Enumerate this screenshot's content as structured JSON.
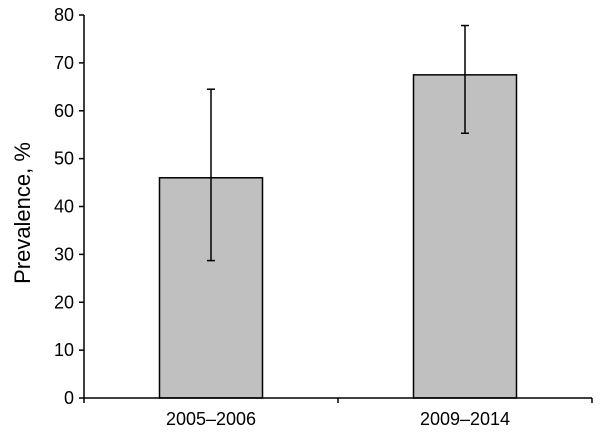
{
  "chart_data": {
    "type": "bar",
    "categories": [
      "2005–2006",
      "2009–2014"
    ],
    "values": [
      46,
      67.5
    ],
    "error_low": [
      28.7,
      55.3
    ],
    "error_high": [
      64.5,
      77.8
    ],
    "title": "",
    "xlabel": "",
    "ylabel": "Prevalence, %",
    "ylim": [
      0,
      80
    ],
    "yticks": [
      0,
      10,
      20,
      30,
      40,
      50,
      60,
      70,
      80
    ],
    "grid": false,
    "legend": "none",
    "bar_color": "#c0c0c0",
    "bar_edge_color": "#000000"
  }
}
